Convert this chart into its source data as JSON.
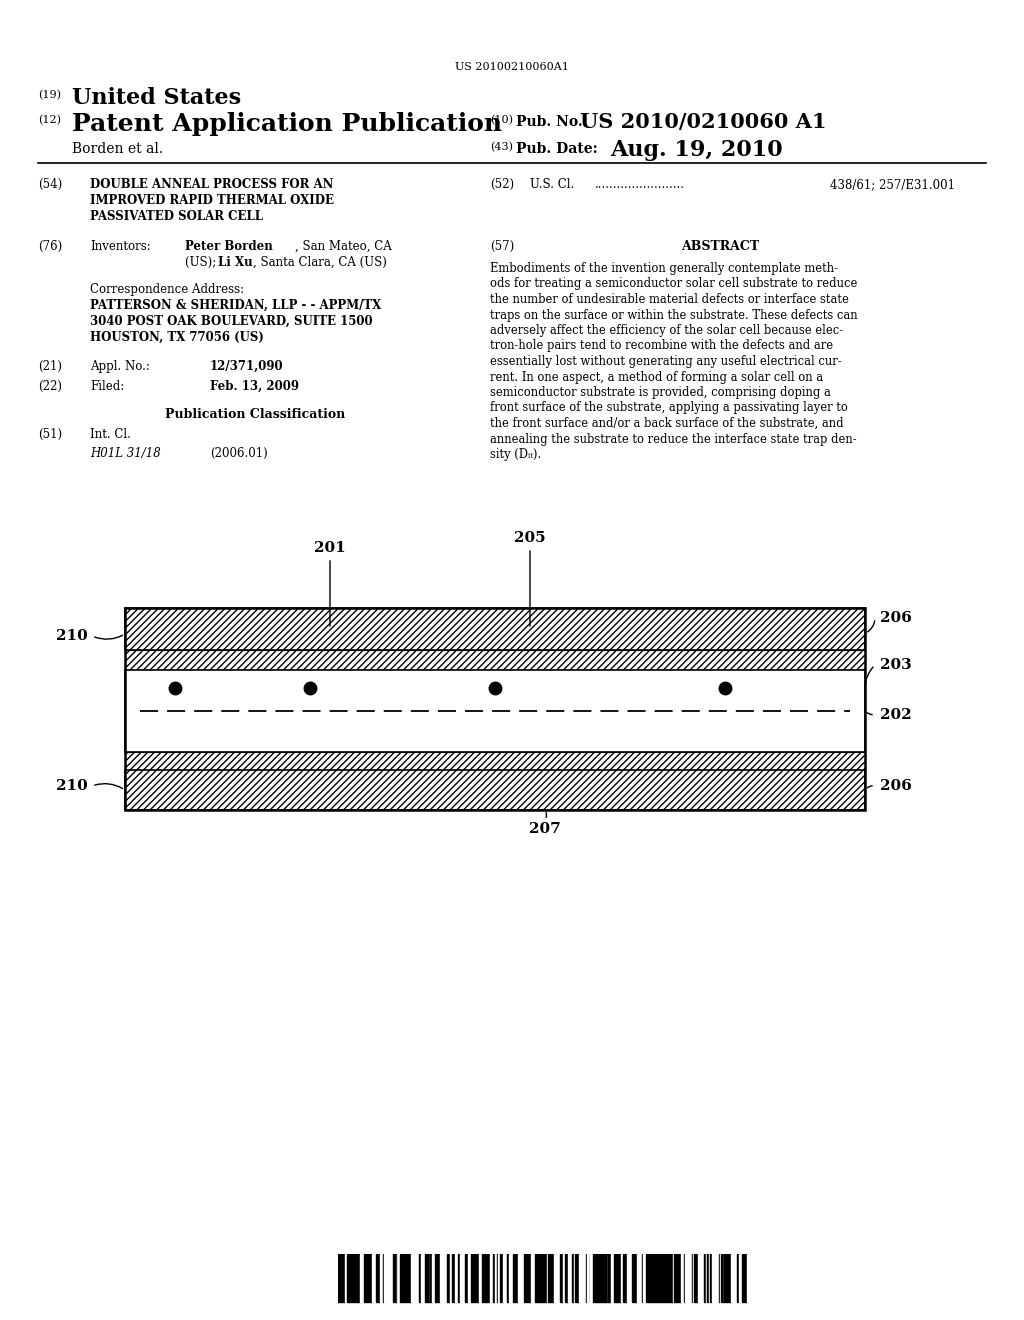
{
  "background_color": "#ffffff",
  "barcode_text": "US 20100210060A1",
  "pub_no": "US 2010/0210060 A1",
  "pub_date": "Aug. 19, 2010",
  "inventor_name": "Borden et al.",
  "field52_value": "438/61; 257/E31.001",
  "field21_value": "12/371,090",
  "field22_value": "Feb. 13, 2009",
  "field51_class": "H01L 31/18",
  "field51_year": "(2006.01)",
  "abstract_lines": [
    "Embodiments of the invention generally contemplate meth-",
    "ods for treating a semiconductor solar cell substrate to reduce",
    "the number of undesirable material defects or interface state",
    "traps on the surface or within the substrate. These defects can",
    "adversely affect the efficiency of the solar cell because elec-",
    "tron-hole pairs tend to recombine with the defects and are",
    "essentially lost without generating any useful electrical cur-",
    "rent. In one aspect, a method of forming a solar cell on a",
    "semiconductor substrate is provided, comprising doping a",
    "front surface of the substrate, applying a passivating layer to",
    "the front surface and/or a back surface of the substrate, and",
    "annealing the substrate to reduce the interface state trap den-",
    "sity (Dᵢₜ)."
  ]
}
